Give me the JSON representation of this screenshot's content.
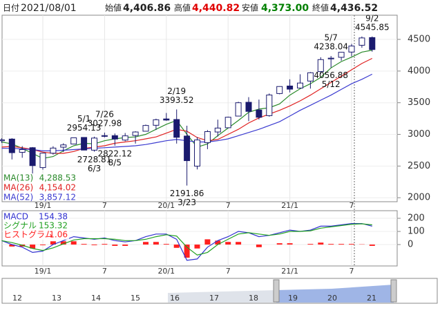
{
  "header": {
    "items": [
      {
        "label": "日付",
        "value": "2021/08/01",
        "color": "#222222"
      },
      {
        "label": "始値",
        "value": "4,406.86",
        "color": "#222222"
      },
      {
        "label": "高値",
        "value": "4,440.82",
        "color": "#e00000"
      },
      {
        "label": "安値",
        "value": "4,373.00",
        "color": "#008000"
      },
      {
        "label": "終値",
        "value": "4,436.52",
        "color": "#222222"
      }
    ]
  },
  "chart_data": [
    {
      "type": "candlestick",
      "categories": [
        null,
        null,
        null,
        null,
        "19/1",
        null,
        null,
        null,
        null,
        null,
        "7",
        null,
        null,
        null,
        null,
        null,
        "20/1",
        null,
        null,
        null,
        null,
        null,
        "7",
        null,
        null,
        null,
        null,
        null,
        "21/1",
        null,
        null,
        null,
        null,
        null,
        "7",
        null,
        null
      ],
      "open": [
        2900,
        2926,
        2717,
        2790,
        2476,
        2703,
        2798,
        2848,
        2952,
        2751,
        2971,
        2980,
        2910,
        2983,
        3050,
        3144,
        3244,
        3235,
        2974,
        2499,
        2869,
        3038,
        3105,
        3289,
        3507,
        3385,
        3296,
        3645,
        3764,
        3732,
        3842,
        3992,
        4192,
        4217,
        4300,
        4407,
        4529
      ],
      "high": [
        2940,
        2940,
        2815,
        2800,
        2708,
        2813,
        2860,
        2949,
        2954,
        2964,
        3028,
        3014,
        3022,
        3050,
        3155,
        3248,
        3338,
        3394,
        3137,
        2955,
        3068,
        3233,
        3280,
        3515,
        3588,
        3550,
        3646,
        3760,
        3870,
        3950,
        3984,
        4218,
        4238,
        4302,
        4429,
        4546,
        4546
      ],
      "low": [
        2865,
        2604,
        2631,
        2346,
        2443,
        2681,
        2722,
        2848,
        2750,
        2728,
        2953,
        2822,
        2892,
        2855,
        3050,
        3070,
        3215,
        2855,
        2192,
        2447,
        2767,
        2966,
        3101,
        3284,
        3209,
        3234,
        3280,
        3633,
        3663,
        3725,
        3723,
        3955,
        4056,
        4164,
        4233,
        4368,
        4306
      ],
      "close": [
        2914,
        2711,
        2760,
        2507,
        2704,
        2784,
        2834,
        2946,
        2752,
        2942,
        2980,
        2926,
        2977,
        3038,
        3141,
        3231,
        3226,
        2954,
        2585,
        2912,
        3044,
        3100,
        3271,
        3500,
        3363,
        3270,
        3622,
        3756,
        3714,
        3811,
        3973,
        4181,
        4204,
        4297,
        4395,
        4523,
        4340
      ],
      "up_color": "#ffffff",
      "down_color": "#1a1a6e",
      "edge_color": "#1a1a6e",
      "series": [
        {
          "name": "MA(13)",
          "color": "#2a8a2a",
          "value_label": "4,288.53",
          "values": [
            2880,
            2850,
            2780,
            2700,
            2620,
            2650,
            2740,
            2820,
            2860,
            2850,
            2900,
            2930,
            2950,
            2960,
            3000,
            3080,
            3160,
            3220,
            3000,
            2800,
            2850,
            2980,
            3100,
            3220,
            3350,
            3400,
            3420,
            3480,
            3620,
            3720,
            3800,
            3900,
            4050,
            4150,
            4220,
            4300,
            4330
          ]
        },
        {
          "name": "MA(26)",
          "color": "#e02020",
          "value_label": "4,154.02",
          "values": [
            2800,
            2810,
            2790,
            2760,
            2720,
            2700,
            2700,
            2730,
            2780,
            2800,
            2820,
            2860,
            2880,
            2900,
            2930,
            2960,
            3020,
            3080,
            3050,
            2950,
            2900,
            2920,
            3000,
            3080,
            3180,
            3260,
            3320,
            3380,
            3450,
            3530,
            3620,
            3720,
            3820,
            3920,
            4020,
            4120,
            4200
          ]
        },
        {
          "name": "MA(52)",
          "color": "#3a3ad0",
          "value_label": "3,857.12",
          "values": [
            2780,
            2780,
            2770,
            2760,
            2740,
            2740,
            2750,
            2760,
            2770,
            2780,
            2790,
            2800,
            2810,
            2820,
            2840,
            2870,
            2900,
            2920,
            2900,
            2880,
            2880,
            2900,
            2930,
            2980,
            3030,
            3080,
            3140,
            3200,
            3290,
            3380,
            3460,
            3540,
            3620,
            3710,
            3800,
            3870,
            3950
          ]
        }
      ],
      "annotations": [
        {
          "date": "5/1",
          "value": 2954.13
        },
        {
          "date": "7/26",
          "value": 3027.98
        },
        {
          "date": "6/3",
          "value": 2728.81
        },
        {
          "date": "8/5",
          "value": 2822.12
        },
        {
          "date": "2/19",
          "value": 3393.52
        },
        {
          "date": "3/23",
          "value": 2191.86
        },
        {
          "date": "5/7",
          "value": 4238.04
        },
        {
          "date": "5/12",
          "value": 4056.88
        },
        {
          "date": "9/2",
          "value": 4545.85
        }
      ],
      "ylim": [
        1937,
        4882
      ],
      "yticks": [
        2000,
        2500,
        3000,
        3500,
        4000,
        4500
      ],
      "grid": true
    },
    {
      "type": "macd",
      "categories": [
        null,
        null,
        null,
        null,
        "19/1",
        null,
        null,
        null,
        null,
        null,
        "7",
        null,
        null,
        null,
        null,
        null,
        "20/1",
        null,
        null,
        null,
        null,
        null,
        "7",
        null,
        null,
        null,
        null,
        null,
        "21/1",
        null,
        null,
        null,
        null,
        null,
        "7",
        null,
        null
      ],
      "series": [
        {
          "name": "MACD",
          "color": "#3030d0",
          "kind": "line",
          "value_label": "154.38",
          "values": [
            30,
            0,
            -20,
            -60,
            -50,
            0,
            30,
            60,
            50,
            40,
            50,
            30,
            20,
            30,
            60,
            80,
            80,
            40,
            -120,
            -110,
            -20,
            30,
            60,
            100,
            90,
            60,
            70,
            90,
            110,
            100,
            110,
            140,
            140,
            150,
            160,
            160,
            140
          ]
        },
        {
          "name": "シグナル",
          "color": "#20a020",
          "kind": "line",
          "value_label": "153.32",
          "values": [
            30,
            15,
            -5,
            -30,
            -45,
            -25,
            5,
            35,
            45,
            45,
            45,
            40,
            30,
            30,
            40,
            60,
            75,
            65,
            -20,
            -80,
            -60,
            0,
            40,
            80,
            90,
            80,
            70,
            80,
            100,
            100,
            105,
            125,
            135,
            145,
            155,
            158,
            150
          ]
        },
        {
          "name": "ヒストグラム",
          "color": "#ff2020",
          "kind": "bar",
          "value_label": "1.06",
          "values": [
            0,
            -15,
            -15,
            -30,
            -5,
            25,
            25,
            25,
            5,
            -5,
            5,
            -10,
            -10,
            0,
            20,
            20,
            5,
            -25,
            -100,
            -30,
            40,
            30,
            20,
            20,
            0,
            -20,
            0,
            10,
            10,
            0,
            5,
            15,
            5,
            5,
            5,
            2,
            -10
          ]
        }
      ],
      "ylim": [
        -163,
        258
      ],
      "yticks": [
        0,
        100,
        200
      ],
      "grid": true
    }
  ],
  "navigator": {
    "labels": [
      "12",
      "13",
      "14",
      "15",
      "16",
      "17",
      "18",
      "19",
      "20",
      "21"
    ]
  }
}
